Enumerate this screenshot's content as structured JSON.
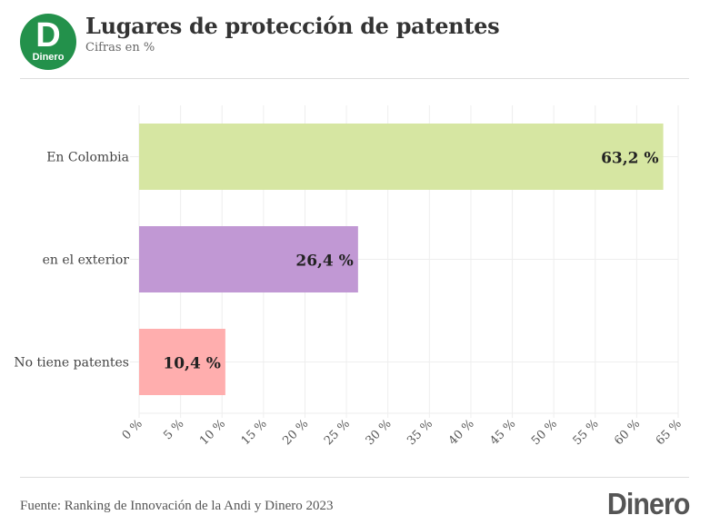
{
  "header": {
    "logo_letter": "D",
    "logo_text": "Dinero",
    "title": "Lugares de protección de patentes",
    "subtitle": "Cifras en %"
  },
  "footer": {
    "source": "Fuente: Ranking de Innovación de la Andi y Dinero 2023",
    "brand": "Dinero"
  },
  "colors": {
    "logo_green": "#23914b"
  },
  "chart_data": {
    "type": "bar",
    "orientation": "horizontal",
    "title": "Lugares de protección de patentes",
    "subtitle": "Cifras en %",
    "categories": [
      "En Colombia",
      "en el exterior",
      "No tiene patentes"
    ],
    "values": [
      63.2,
      26.4,
      10.4
    ],
    "value_labels": [
      "63,2 %",
      "26,4 %",
      "10,4 %"
    ],
    "bar_colors": [
      "#d6e6a2",
      "#c198d4",
      "#ffaeae"
    ],
    "xlabel": "",
    "ylabel": "",
    "xlim": [
      0,
      65
    ],
    "x_ticks": [
      0,
      5,
      10,
      15,
      20,
      25,
      30,
      35,
      40,
      45,
      50,
      55,
      60,
      65
    ],
    "x_tick_labels": [
      "0 %",
      "5 %",
      "10 %",
      "15 %",
      "20 %",
      "25 %",
      "30 %",
      "35 %",
      "40 %",
      "45 %",
      "50 %",
      "55 %",
      "60 %",
      "65 %"
    ],
    "grid": true,
    "legend": "none"
  }
}
